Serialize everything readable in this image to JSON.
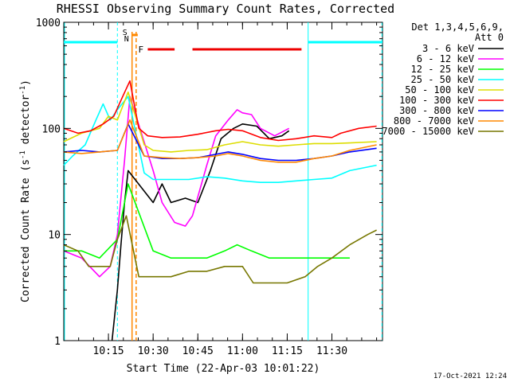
{
  "chart_data": {
    "type": "line",
    "title": "RHESSI Observing Summary Count Rates, Corrected",
    "xlabel": "Start Time (22-Apr-03 10:01:22)",
    "ylabel_main": "Corrected Count Rate (s",
    "ylabel_sup1": "-1",
    "ylabel_mid": " detector",
    "ylabel_sup2": "-1",
    "ylabel_end": ")",
    "xlim": [
      10.0,
      11.783
    ],
    "ylim": [
      1,
      1000
    ],
    "yscale": "log",
    "x_ticks": [
      {
        "x": 10.25,
        "label": "10:15"
      },
      {
        "x": 10.5,
        "label": "10:30"
      },
      {
        "x": 10.75,
        "label": "10:45"
      },
      {
        "x": 11.0,
        "label": "11:00"
      },
      {
        "x": 11.25,
        "label": "11:15"
      },
      {
        "x": 11.5,
        "label": "11:30"
      }
    ],
    "y_ticks": [
      {
        "y": 1,
        "label": "1"
      },
      {
        "y": 10,
        "label": "10"
      },
      {
        "y": 100,
        "label": "100"
      },
      {
        "y": 1000,
        "label": "1000"
      }
    ],
    "legend_header": [
      "Det 1,3,4,5,6,9,",
      "Att 0"
    ],
    "legend_position": "right-outside",
    "timestamp": "17-Oct-2021 12:24",
    "markers": {
      "saa_label": "S",
      "night_label": "N",
      "flare_label": "F",
      "night_periods": [
        [
          10.0,
          10.3
        ],
        [
          11.367,
          11.783
        ]
      ],
      "cyan_dashed_x": [
        10.3,
        11.78
      ],
      "cyan_solid_x": [
        10.0,
        11.367
      ],
      "orange_solid_x": 10.382,
      "orange_dashed_x": 10.405,
      "flare_periods": [
        [
          10.47,
          10.62
        ],
        [
          10.72,
          11.33
        ]
      ],
      "bar_y": 650
    },
    "series": [
      {
        "name": "3 - 6 keV",
        "color": "#000000",
        "points": [
          [
            10.27,
            1
          ],
          [
            10.3,
            3
          ],
          [
            10.32,
            8
          ],
          [
            10.34,
            20
          ],
          [
            10.36,
            40
          ],
          [
            10.5,
            20
          ],
          [
            10.55,
            30
          ],
          [
            10.6,
            20
          ],
          [
            10.68,
            22
          ],
          [
            10.75,
            20
          ],
          [
            10.82,
            40
          ],
          [
            10.88,
            80
          ],
          [
            10.95,
            100
          ],
          [
            11.0,
            110
          ],
          [
            11.08,
            105
          ],
          [
            11.15,
            80
          ],
          [
            11.22,
            85
          ],
          [
            11.26,
            95
          ]
        ]
      },
      {
        "name": "6 - 12 keV",
        "color": "#ff00ff",
        "points": [
          [
            10.0,
            7
          ],
          [
            10.1,
            6
          ],
          [
            10.2,
            4
          ],
          [
            10.26,
            5
          ],
          [
            10.3,
            10
          ],
          [
            10.34,
            50
          ],
          [
            10.37,
            200
          ],
          [
            10.5,
            40
          ],
          [
            10.55,
            20
          ],
          [
            10.62,
            13
          ],
          [
            10.68,
            12
          ],
          [
            10.72,
            15
          ],
          [
            10.8,
            45
          ],
          [
            10.85,
            85
          ],
          [
            10.92,
            120
          ],
          [
            10.97,
            150
          ],
          [
            11.0,
            140
          ],
          [
            11.05,
            135
          ],
          [
            11.1,
            100
          ],
          [
            11.18,
            85
          ],
          [
            11.26,
            100
          ]
        ]
      },
      {
        "name": "12 - 25 keV",
        "color": "#00ff00",
        "points": [
          [
            10.0,
            7
          ],
          [
            10.1,
            7
          ],
          [
            10.2,
            6
          ],
          [
            10.3,
            9
          ],
          [
            10.36,
            30
          ],
          [
            10.5,
            7
          ],
          [
            10.6,
            6
          ],
          [
            10.7,
            6
          ],
          [
            10.8,
            6
          ],
          [
            10.9,
            7
          ],
          [
            10.97,
            8
          ],
          [
            11.05,
            7
          ],
          [
            11.15,
            6
          ],
          [
            11.26,
            6
          ],
          [
            11.35,
            6
          ],
          [
            11.45,
            6
          ],
          [
            11.55,
            6
          ],
          [
            11.6,
            6
          ]
        ]
      },
      {
        "name": "25 - 50 keV",
        "color": "#00ffff",
        "points": [
          [
            10.0,
            45
          ],
          [
            10.05,
            55
          ],
          [
            10.12,
            70
          ],
          [
            10.18,
            120
          ],
          [
            10.22,
            170
          ],
          [
            10.26,
            120
          ],
          [
            10.3,
            150
          ],
          [
            10.36,
            200
          ],
          [
            10.45,
            38
          ],
          [
            10.5,
            33
          ],
          [
            10.6,
            33
          ],
          [
            10.7,
            33
          ],
          [
            10.8,
            35
          ],
          [
            10.9,
            34
          ],
          [
            11.0,
            32
          ],
          [
            11.1,
            31
          ],
          [
            11.2,
            31
          ],
          [
            11.3,
            32
          ],
          [
            11.4,
            33
          ],
          [
            11.5,
            34
          ],
          [
            11.6,
            40
          ],
          [
            11.75,
            45
          ]
        ]
      },
      {
        "name": "50 - 100 keV",
        "color": "#dddd00",
        "points": [
          [
            10.0,
            75
          ],
          [
            10.1,
            90
          ],
          [
            10.2,
            100
          ],
          [
            10.25,
            130
          ],
          [
            10.3,
            120
          ],
          [
            10.36,
            220
          ],
          [
            10.45,
            70
          ],
          [
            10.5,
            62
          ],
          [
            10.6,
            60
          ],
          [
            10.7,
            62
          ],
          [
            10.8,
            63
          ],
          [
            10.9,
            70
          ],
          [
            11.0,
            75
          ],
          [
            11.1,
            70
          ],
          [
            11.2,
            68
          ],
          [
            11.3,
            70
          ],
          [
            11.4,
            72
          ],
          [
            11.5,
            72
          ],
          [
            11.6,
            73
          ],
          [
            11.75,
            75
          ]
        ]
      },
      {
        "name": "100 - 300 keV",
        "color": "#ff0000",
        "points": [
          [
            10.0,
            100
          ],
          [
            10.08,
            90
          ],
          [
            10.15,
            95
          ],
          [
            10.22,
            110
          ],
          [
            10.28,
            130
          ],
          [
            10.33,
            200
          ],
          [
            10.37,
            280
          ],
          [
            10.42,
            100
          ],
          [
            10.47,
            85
          ],
          [
            10.55,
            82
          ],
          [
            10.65,
            83
          ],
          [
            10.75,
            88
          ],
          [
            10.85,
            95
          ],
          [
            10.92,
            98
          ],
          [
            11.0,
            95
          ],
          [
            11.1,
            82
          ],
          [
            11.2,
            77
          ],
          [
            11.3,
            80
          ],
          [
            11.4,
            85
          ],
          [
            11.5,
            82
          ],
          [
            11.55,
            90
          ],
          [
            11.65,
            100
          ],
          [
            11.75,
            105
          ]
        ]
      },
      {
        "name": "300 - 800 keV",
        "color": "#0000ff",
        "points": [
          [
            10.0,
            60
          ],
          [
            10.1,
            62
          ],
          [
            10.2,
            60
          ],
          [
            10.3,
            62
          ],
          [
            10.36,
            110
          ],
          [
            10.45,
            55
          ],
          [
            10.55,
            52
          ],
          [
            10.65,
            52
          ],
          [
            10.75,
            53
          ],
          [
            10.85,
            57
          ],
          [
            10.92,
            60
          ],
          [
            11.0,
            57
          ],
          [
            11.1,
            52
          ],
          [
            11.2,
            50
          ],
          [
            11.3,
            50
          ],
          [
            11.4,
            52
          ],
          [
            11.5,
            55
          ],
          [
            11.6,
            60
          ],
          [
            11.75,
            65
          ]
        ]
      },
      {
        "name": "800 - 7000 keV",
        "color": "#ff8800",
        "points": [
          [
            10.0,
            60
          ],
          [
            10.1,
            58
          ],
          [
            10.2,
            60
          ],
          [
            10.3,
            62
          ],
          [
            10.37,
            120
          ],
          [
            10.45,
            55
          ],
          [
            10.55,
            53
          ],
          [
            10.65,
            52
          ],
          [
            10.75,
            53
          ],
          [
            10.85,
            55
          ],
          [
            10.92,
            58
          ],
          [
            11.0,
            55
          ],
          [
            11.1,
            50
          ],
          [
            11.2,
            48
          ],
          [
            11.3,
            48
          ],
          [
            11.4,
            52
          ],
          [
            11.5,
            55
          ],
          [
            11.6,
            62
          ],
          [
            11.75,
            70
          ]
        ]
      },
      {
        "name": "7000 - 15000 keV",
        "color": "#777700",
        "points": [
          [
            10.0,
            8
          ],
          [
            10.08,
            7
          ],
          [
            10.14,
            5
          ],
          [
            10.2,
            5
          ],
          [
            10.26,
            5
          ],
          [
            10.3,
            9
          ],
          [
            10.35,
            15
          ],
          [
            10.42,
            4
          ],
          [
            10.5,
            4
          ],
          [
            10.6,
            4
          ],
          [
            10.7,
            4.5
          ],
          [
            10.8,
            4.5
          ],
          [
            10.9,
            5
          ],
          [
            11.0,
            5
          ],
          [
            11.06,
            3.5
          ],
          [
            11.15,
            3.5
          ],
          [
            11.25,
            3.5
          ],
          [
            11.35,
            4
          ],
          [
            11.42,
            5
          ],
          [
            11.5,
            6
          ],
          [
            11.6,
            8
          ],
          [
            11.7,
            10
          ],
          [
            11.75,
            11
          ]
        ]
      }
    ]
  }
}
